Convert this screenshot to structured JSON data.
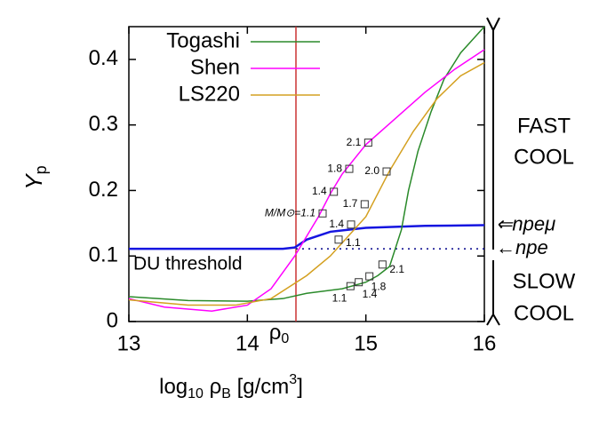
{
  "chart_data": {
    "type": "line",
    "x_label": [
      "log",
      "10",
      " ρ",
      "B",
      " [g/cm",
      "3",
      "]"
    ],
    "y_label": [
      "Y",
      "p"
    ],
    "xlim": [
      13,
      16
    ],
    "ylim": [
      0,
      0.45
    ],
    "xticks": [
      13,
      14,
      15,
      16
    ],
    "yticks": [
      0,
      0.1,
      0.2,
      0.3,
      0.4
    ],
    "series": [
      {
        "name": "Togashi",
        "color": "#2a8a2a",
        "x": [
          13,
          13.5,
          14,
          14.3,
          14.5,
          14.8,
          15.0,
          15.1,
          15.2,
          15.3,
          15.36,
          15.44,
          15.55,
          15.66,
          15.8,
          16
        ],
        "values": [
          0.038,
          0.032,
          0.031,
          0.035,
          0.043,
          0.05,
          0.06,
          0.07,
          0.084,
          0.14,
          0.2,
          0.26,
          0.32,
          0.37,
          0.41,
          0.45
        ],
        "markers": [
          {
            "x": 14.87,
            "y": 0.054,
            "label": "1.1"
          },
          {
            "x": 14.94,
            "y": 0.06,
            "label": "1.4"
          },
          {
            "x": 15.03,
            "y": 0.069,
            "label": "1.8"
          },
          {
            "x": 15.14,
            "y": 0.087,
            "label": "2.1"
          }
        ]
      },
      {
        "name": "Shen",
        "color": "#ff00ff",
        "x": [
          13,
          13.3,
          13.7,
          14,
          14.2,
          14.4,
          14.5,
          14.6,
          14.7,
          14.8,
          15,
          15.25,
          15.5,
          15.75,
          16
        ],
        "values": [
          0.035,
          0.022,
          0.016,
          0.025,
          0.05,
          0.1,
          0.13,
          0.16,
          0.195,
          0.225,
          0.27,
          0.31,
          0.35,
          0.385,
          0.415
        ],
        "markers": [
          {
            "x": 14.635,
            "y": 0.165,
            "label": "M/M⊙=1.1"
          },
          {
            "x": 14.73,
            "y": 0.198,
            "label": "1.4"
          },
          {
            "x": 14.86,
            "y": 0.233,
            "label": "1.8"
          },
          {
            "x": 15.02,
            "y": 0.273,
            "label": "2.1"
          }
        ]
      },
      {
        "name": "LS220",
        "color": "#d4a020",
        "x": [
          13,
          13.5,
          13.9,
          14.2,
          14.5,
          14.7,
          14.8,
          15,
          15.2,
          15.4,
          15.6,
          15.8,
          16
        ],
        "values": [
          0.033,
          0.025,
          0.025,
          0.035,
          0.07,
          0.1,
          0.12,
          0.16,
          0.23,
          0.29,
          0.34,
          0.375,
          0.395
        ],
        "markers": [
          {
            "x": 14.77,
            "y": 0.125,
            "label": "1.1"
          },
          {
            "x": 14.875,
            "y": 0.148,
            "label": "1.4"
          },
          {
            "x": 14.99,
            "y": 0.179,
            "label": "1.7"
          },
          {
            "x": 15.175,
            "y": 0.229,
            "label": "2.0"
          }
        ]
      }
    ],
    "threshold": {
      "name": "DU threshold",
      "color": "#1515e0",
      "x": [
        13,
        14.3,
        14.4,
        14.5,
        14.7,
        15,
        15.5,
        16
      ],
      "values": [
        0.111,
        0.111,
        0.113,
        0.125,
        0.137,
        0.143,
        0.146,
        0.147
      ]
    },
    "npe_level": {
      "value": 0.111,
      "color": "#00008b"
    },
    "rho0": {
      "value": 14.41,
      "color": "#cc3333",
      "label": [
        "ρ",
        "0"
      ]
    },
    "annotations": {
      "npemu": {
        "text": "⇐npeμ",
        "y": 0.147
      },
      "npe": {
        "text": "←npe",
        "y": 0.111
      },
      "fast": [
        "FAST",
        "COOL"
      ],
      "slow": [
        "SLOW",
        "COOL"
      ]
    }
  }
}
